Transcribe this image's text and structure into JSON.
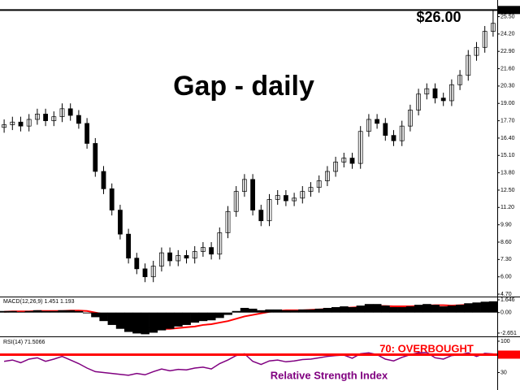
{
  "chart_data": [
    {
      "type": "candlestick",
      "title": "Gap - daily",
      "annotation": "$26.00",
      "price_line": {
        "value": 26,
        "label": "26.00"
      },
      "up_color": "#ffffff",
      "down_color": "#000000",
      "open": [
        17.2,
        17.4,
        17.6,
        17.3,
        17.8,
        18.2,
        17.7,
        18.0,
        18.6,
        18.1,
        17.5,
        16.0,
        13.9,
        12.6,
        11.0,
        9.2,
        7.4,
        6.6,
        6.0,
        6.8,
        7.8,
        7.2,
        7.6,
        7.4,
        7.9,
        8.2,
        7.7,
        9.3,
        10.9,
        12.4,
        13.3,
        11.0,
        10.2,
        11.8,
        12.1,
        11.7,
        11.9,
        12.4,
        12.7,
        13.2,
        13.9,
        14.6,
        14.9,
        14.5,
        16.9,
        17.8,
        17.5,
        16.6,
        16.2,
        17.3,
        18.5,
        19.7,
        20.1,
        19.4,
        19.2,
        20.4,
        21.1,
        22.6,
        23.2,
        24.4
      ],
      "high": [
        17.8,
        18.0,
        18.0,
        18.2,
        18.6,
        18.6,
        18.4,
        19.0,
        19.0,
        18.5,
        17.9,
        16.4,
        14.3,
        13.0,
        11.4,
        9.6,
        7.8,
        7.0,
        7.2,
        8.2,
        8.2,
        8.0,
        8.0,
        8.3,
        8.6,
        8.6,
        9.7,
        11.3,
        12.8,
        13.7,
        13.7,
        11.4,
        12.2,
        12.5,
        12.5,
        12.3,
        12.8,
        13.1,
        13.6,
        14.3,
        15.0,
        15.3,
        15.3,
        17.3,
        18.2,
        18.2,
        17.9,
        17.0,
        17.7,
        18.9,
        20.1,
        20.5,
        20.5,
        19.8,
        20.8,
        21.5,
        23.0,
        23.6,
        24.8,
        26.0
      ],
      "low": [
        16.8,
        17.0,
        16.9,
        16.9,
        17.4,
        17.3,
        17.3,
        17.6,
        17.7,
        17.1,
        15.6,
        13.5,
        12.2,
        10.6,
        8.8,
        7.0,
        6.2,
        5.6,
        5.6,
        6.4,
        6.8,
        6.8,
        7.0,
        7.0,
        7.5,
        7.3,
        7.3,
        8.9,
        10.5,
        12.0,
        10.6,
        9.8,
        9.8,
        11.4,
        11.3,
        11.3,
        11.5,
        12.0,
        12.3,
        12.8,
        13.5,
        14.2,
        14.1,
        14.1,
        16.5,
        17.1,
        16.2,
        15.8,
        15.8,
        16.9,
        18.1,
        19.3,
        19.0,
        18.8,
        18.8,
        20.0,
        20.7,
        22.2,
        22.8,
        24.0
      ],
      "close": [
        17.4,
        17.6,
        17.3,
        17.8,
        18.2,
        17.7,
        18.0,
        18.6,
        18.1,
        17.5,
        16.0,
        13.9,
        12.6,
        11.0,
        9.2,
        7.4,
        6.6,
        6.0,
        6.8,
        7.8,
        7.2,
        7.6,
        7.4,
        7.9,
        8.2,
        7.7,
        9.3,
        10.9,
        12.4,
        13.3,
        11.0,
        10.2,
        11.8,
        12.1,
        11.7,
        11.9,
        12.4,
        12.7,
        13.2,
        13.9,
        14.6,
        14.9,
        14.5,
        16.9,
        17.8,
        17.5,
        16.6,
        16.2,
        17.3,
        18.5,
        19.7,
        20.1,
        19.4,
        19.2,
        20.4,
        21.1,
        22.6,
        23.2,
        24.4,
        25.0
      ],
      "ylim": [
        4.52,
        26.75
      ],
      "yticks": [
        {
          "value": 4.7,
          "label": "4.70"
        },
        {
          "value": 6,
          "label": "6.00"
        },
        {
          "value": 7.3,
          "label": "7.30"
        },
        {
          "value": 8.6,
          "label": "8.60"
        },
        {
          "value": 9.9,
          "label": "9.90"
        },
        {
          "value": 11.2,
          "label": "11.20"
        },
        {
          "value": 12.5,
          "label": "12.50"
        },
        {
          "value": 13.8,
          "label": "13.80"
        },
        {
          "value": 15.1,
          "label": "15.10"
        },
        {
          "value": 16.4,
          "label": "16.40"
        },
        {
          "value": 17.7,
          "label": "17.70"
        },
        {
          "value": 19,
          "label": "19.00"
        },
        {
          "value": 20.3,
          "label": "20.30"
        },
        {
          "value": 21.6,
          "label": "21.60"
        },
        {
          "value": 22.9,
          "label": "22.90"
        },
        {
          "value": 24.2,
          "label": "24.20"
        },
        {
          "value": 25.5,
          "label": "25.50"
        }
      ]
    },
    {
      "type": "macd",
      "label": "MACD(12,26,9) 1.451 1.193",
      "color": "#000000",
      "values": [
        0.2,
        0.2,
        0.1,
        0.2,
        0.3,
        0.2,
        0.2,
        0.3,
        0.3,
        0.2,
        -0.1,
        -0.6,
        -1.1,
        -1.6,
        -2.1,
        -2.5,
        -2.7,
        -2.8,
        -2.6,
        -2.3,
        -2.1,
        -1.8,
        -1.6,
        -1.3,
        -1.1,
        -1.0,
        -0.7,
        -0.3,
        0.2,
        0.6,
        0.5,
        0.3,
        0.4,
        0.4,
        0.3,
        0.3,
        0.4,
        0.4,
        0.5,
        0.6,
        0.7,
        0.8,
        0.7,
        0.9,
        1.1,
        1.1,
        0.9,
        0.7,
        0.7,
        0.8,
        1.0,
        1.1,
        1.0,
        0.8,
        0.9,
        1.0,
        1.2,
        1.3,
        1.4,
        1.451
      ],
      "signal": {
        "color": "#ff0000",
        "values": [
          0.1,
          0.15,
          0.15,
          0.15,
          0.2,
          0.2,
          0.2,
          0.2,
          0.25,
          0.25,
          0.2,
          0.0,
          -0.2,
          -0.5,
          -0.8,
          -1.2,
          -1.5,
          -1.8,
          -2.0,
          -2.1,
          -2.1,
          -2.0,
          -1.9,
          -1.8,
          -1.6,
          -1.5,
          -1.3,
          -1.1,
          -0.8,
          -0.5,
          -0.3,
          -0.1,
          0.1,
          0.2,
          0.3,
          0.3,
          0.3,
          0.35,
          0.4,
          0.45,
          0.5,
          0.6,
          0.65,
          0.7,
          0.8,
          0.85,
          0.85,
          0.8,
          0.8,
          0.8,
          0.85,
          0.9,
          0.95,
          0.95,
          0.9,
          0.95,
          1.0,
          1.05,
          1.1,
          1.193
        ]
      },
      "ylim": [
        -2.97,
        1.96
      ],
      "yticks": [
        1.646,
        {
          "value": 0,
          "label": "0.00"
        },
        -2.651
      ]
    },
    {
      "type": "rsi",
      "label": "RSI(14) 71.5066",
      "color": "#800080",
      "values": [
        55,
        58,
        52,
        60,
        63,
        55,
        60,
        66,
        58,
        50,
        40,
        32,
        30,
        28,
        26,
        24,
        28,
        25,
        32,
        38,
        34,
        37,
        36,
        40,
        42,
        38,
        50,
        58,
        68,
        72,
        55,
        48,
        56,
        58,
        54,
        56,
        59,
        60,
        63,
        66,
        68,
        69,
        62,
        72,
        74,
        70,
        60,
        56,
        64,
        70,
        74,
        75,
        63,
        60,
        68,
        70,
        74,
        66,
        73,
        71.5066
      ],
      "level": {
        "value": 70,
        "label": "70.0000",
        "color": "#ff0000"
      },
      "annotation": "70: OVERBOUGHT",
      "subtitle": "Relative Strength Index",
      "ylim": [
        -9,
        109
      ],
      "yticks": [
        100,
        30
      ]
    }
  ]
}
